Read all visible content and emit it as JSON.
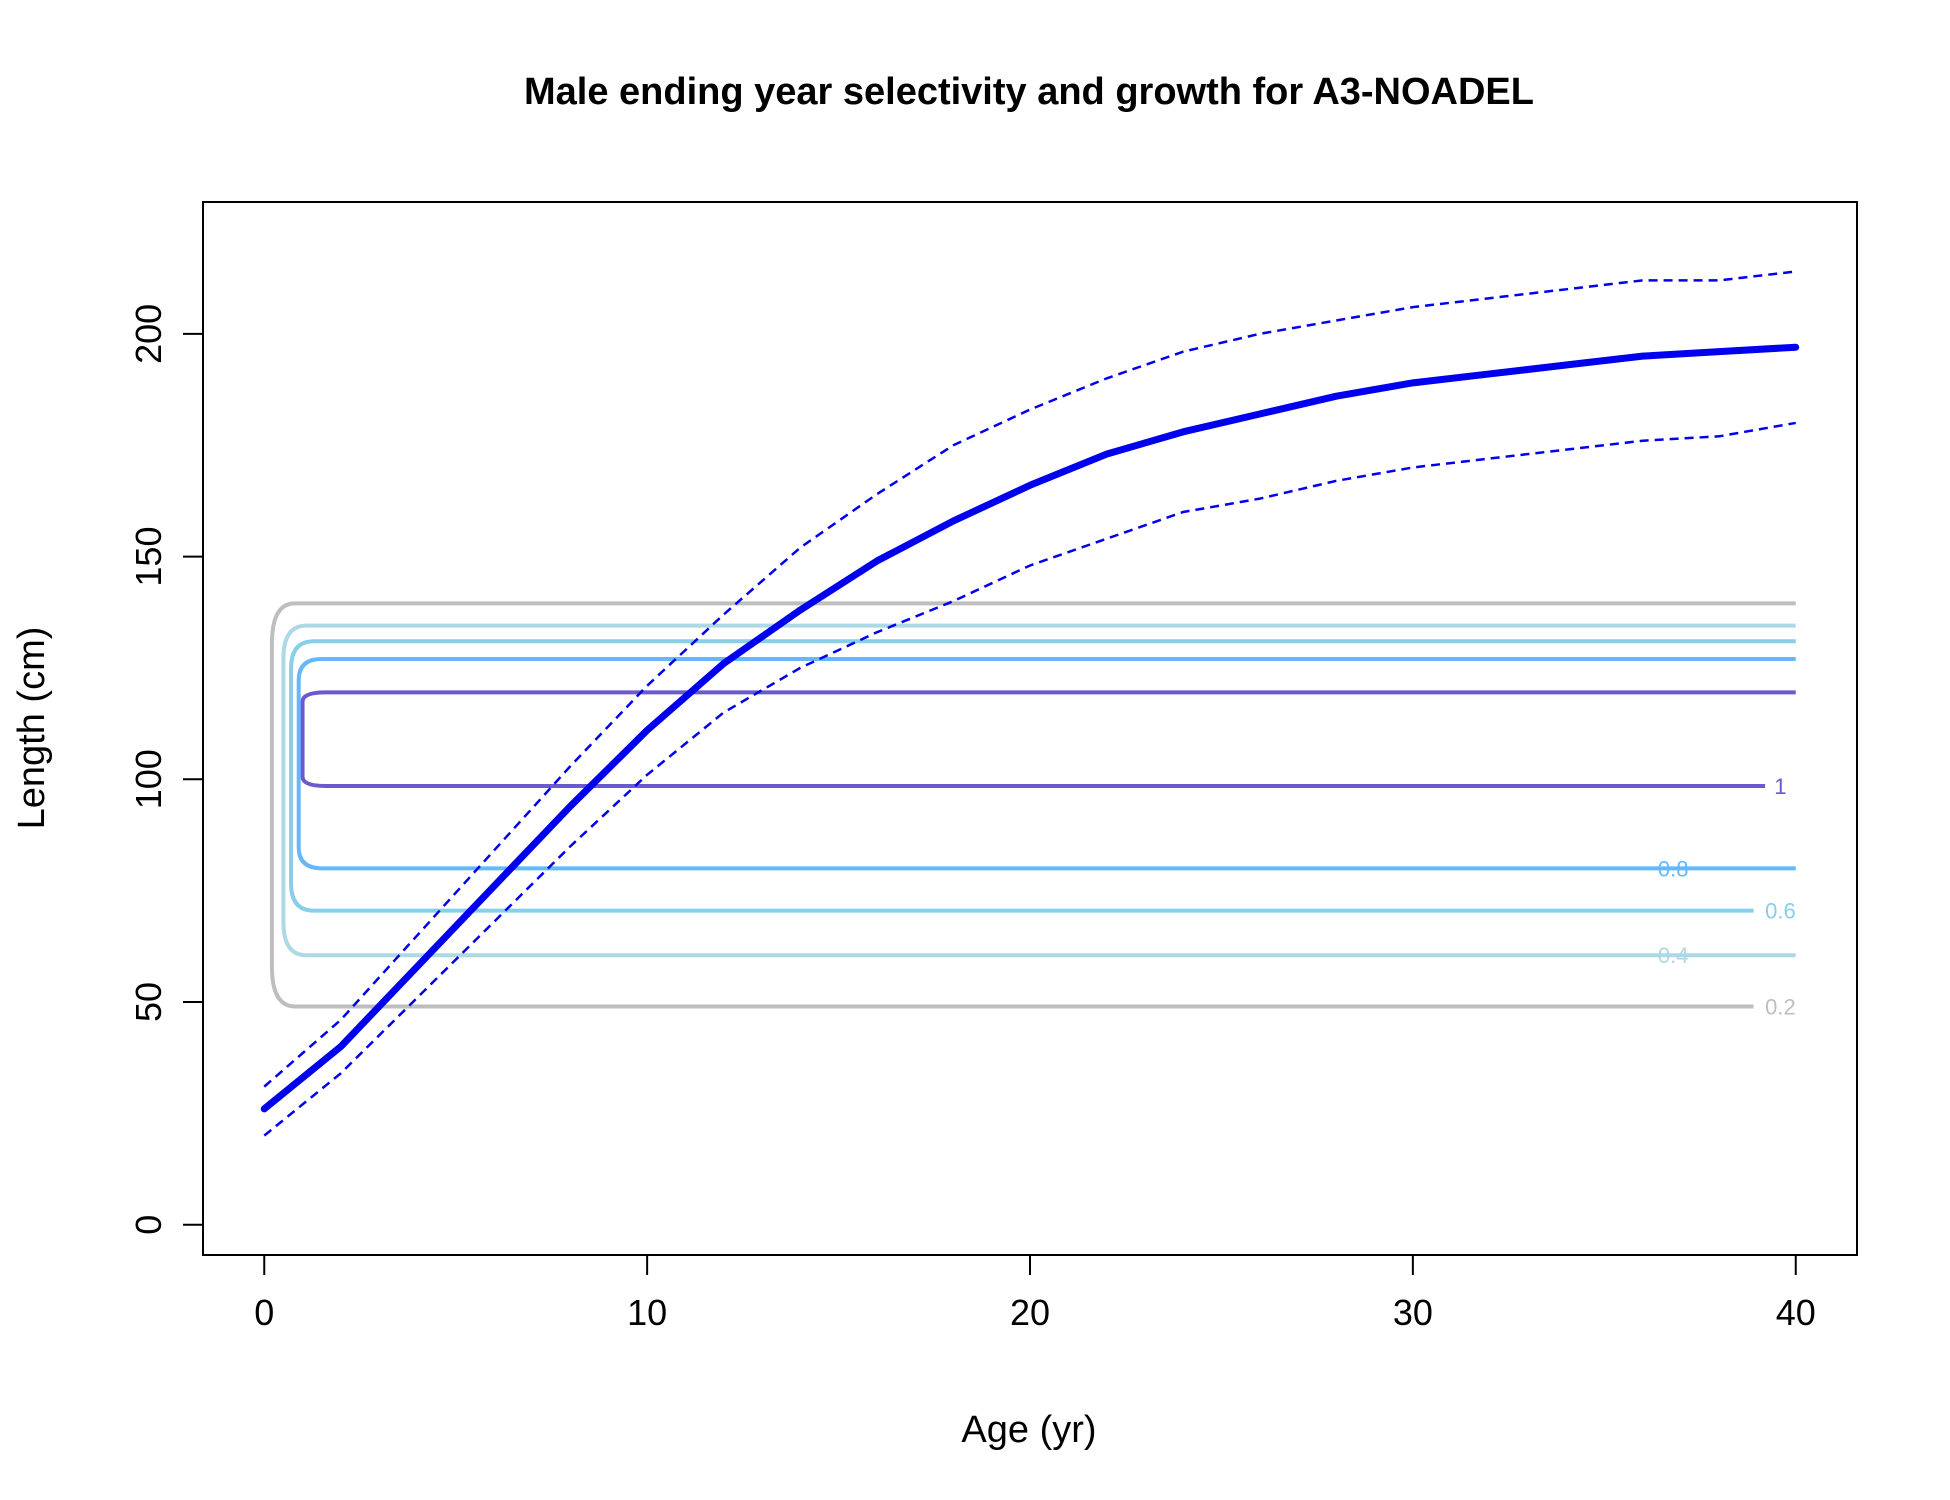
{
  "chart_data": {
    "type": "line",
    "title": "Male ending year selectivity and growth for A3-NOADEL",
    "xlabel": "Age (yr)",
    "ylabel": "Length (cm)",
    "xlim": [
      -1.6,
      41.6
    ],
    "ylim": [
      -6.8,
      229.6
    ],
    "x_ticks": [
      0,
      10,
      20,
      30,
      40
    ],
    "y_ticks": [
      0,
      50,
      100,
      150,
      200
    ],
    "grid": false,
    "growth": {
      "color": "#0000ee",
      "x": [
        0,
        2,
        4,
        6,
        8,
        10,
        12,
        14,
        16,
        18,
        20,
        22,
        24,
        26,
        28,
        30,
        32,
        34,
        36,
        38,
        40
      ],
      "mean": [
        26,
        40,
        58,
        76,
        94,
        111,
        126,
        138,
        149,
        158,
        166,
        173,
        178,
        182,
        186,
        189,
        191,
        193,
        195,
        196,
        197
      ],
      "upper": [
        31,
        46,
        65,
        84,
        103,
        121,
        137,
        152,
        164,
        175,
        183,
        190,
        196,
        200,
        203,
        206,
        208,
        210,
        212,
        212,
        214
      ],
      "lower": [
        20,
        34,
        51,
        68,
        85,
        101,
        115,
        125,
        133,
        140,
        148,
        154,
        160,
        163,
        167,
        170,
        172,
        174,
        176,
        177,
        180
      ]
    },
    "contours": [
      {
        "level": "1",
        "color": "#6a5acd",
        "lower": 98.5,
        "upper": 119.5,
        "x_left": 1.0,
        "x_lower_end": 39.2,
        "label_x": 39.6
      },
      {
        "level": "0.8",
        "color": "#63b8ff",
        "lower": 80.0,
        "upper": 127.0,
        "x_left": 0.9,
        "x_lower_end": 40.0,
        "label_x": 36.8
      },
      {
        "level": "0.6",
        "color": "#87ceeb",
        "lower": 70.5,
        "upper": 131.0,
        "x_left": 0.7,
        "x_lower_end": 38.9,
        "label_x": 39.6
      },
      {
        "level": "0.4",
        "color": "#add8e6",
        "lower": 60.5,
        "upper": 134.5,
        "x_left": 0.5,
        "x_lower_end": 40.0,
        "label_x": 36.8
      },
      {
        "level": "0.2",
        "color": "#bebebe",
        "lower": 49.0,
        "upper": 139.5,
        "x_left": 0.2,
        "x_lower_end": 38.9,
        "label_x": 39.6
      }
    ]
  }
}
